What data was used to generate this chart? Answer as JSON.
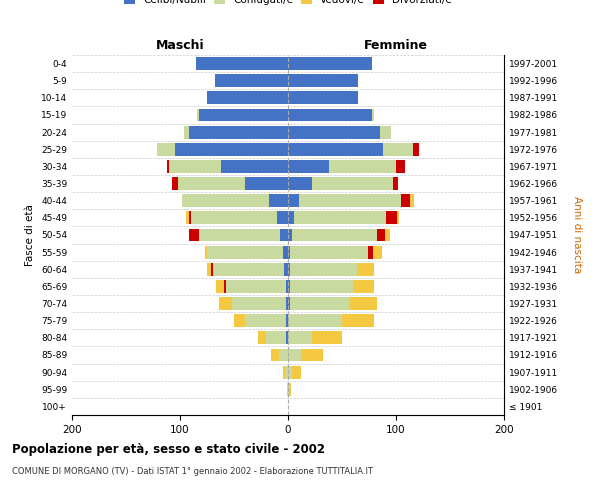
{
  "age_groups": [
    "100+",
    "95-99",
    "90-94",
    "85-89",
    "80-84",
    "75-79",
    "70-74",
    "65-69",
    "60-64",
    "55-59",
    "50-54",
    "45-49",
    "40-44",
    "35-39",
    "30-34",
    "25-29",
    "20-24",
    "15-19",
    "10-14",
    "5-9",
    "0-4"
  ],
  "birth_years": [
    "≤ 1901",
    "1902-1906",
    "1907-1911",
    "1912-1916",
    "1917-1921",
    "1922-1926",
    "1927-1931",
    "1932-1936",
    "1937-1941",
    "1942-1946",
    "1947-1951",
    "1952-1956",
    "1957-1961",
    "1962-1966",
    "1967-1971",
    "1972-1976",
    "1977-1981",
    "1982-1986",
    "1987-1991",
    "1992-1996",
    "1997-2001"
  ],
  "male_celibi": [
    0,
    0,
    0,
    0,
    2,
    2,
    2,
    2,
    4,
    5,
    7,
    10,
    18,
    40,
    62,
    105,
    92,
    82,
    75,
    68,
    85
  ],
  "male_coniugati": [
    0,
    1,
    3,
    8,
    18,
    38,
    50,
    55,
    65,
    70,
    75,
    80,
    80,
    62,
    48,
    16,
    4,
    2,
    0,
    0,
    0
  ],
  "male_vedovi": [
    0,
    0,
    2,
    8,
    8,
    10,
    12,
    8,
    4,
    2,
    0,
    2,
    0,
    0,
    0,
    0,
    0,
    0,
    0,
    0,
    0
  ],
  "male_divorziati": [
    0,
    0,
    0,
    0,
    0,
    0,
    0,
    2,
    2,
    0,
    10,
    2,
    0,
    5,
    2,
    0,
    0,
    0,
    0,
    0,
    0
  ],
  "female_celibi": [
    0,
    0,
    0,
    0,
    0,
    0,
    2,
    2,
    2,
    2,
    4,
    6,
    10,
    22,
    38,
    88,
    85,
    78,
    65,
    65,
    78
  ],
  "female_coniugati": [
    0,
    1,
    4,
    12,
    22,
    50,
    55,
    58,
    62,
    72,
    78,
    85,
    95,
    75,
    62,
    28,
    10,
    2,
    0,
    0,
    0
  ],
  "female_vedovi": [
    0,
    2,
    8,
    20,
    28,
    30,
    25,
    20,
    16,
    8,
    4,
    2,
    4,
    0,
    0,
    0,
    0,
    0,
    0,
    0,
    0
  ],
  "female_divorziati": [
    0,
    0,
    0,
    0,
    0,
    0,
    0,
    0,
    0,
    5,
    8,
    10,
    8,
    5,
    8,
    5,
    0,
    0,
    0,
    0,
    0
  ],
  "color_celibi": "#4472c4",
  "color_coniugati": "#c8daa0",
  "color_vedovi": "#f5c842",
  "color_divorziati": "#cc0000",
  "title": "Popolazione per età, sesso e stato civile - 2002",
  "subtitle": "COMUNE DI MORGANO (TV) - Dati ISTAT 1° gennaio 2002 - Elaborazione TUTTITALIA.IT",
  "label_maschi": "Maschi",
  "label_femmine": "Femmine",
  "ylabel_left": "Fasce di età",
  "ylabel_right": "Anni di nascita",
  "xlim": 200,
  "bg_color": "#ffffff",
  "grid_color": "#cccccc",
  "bar_height": 0.75
}
